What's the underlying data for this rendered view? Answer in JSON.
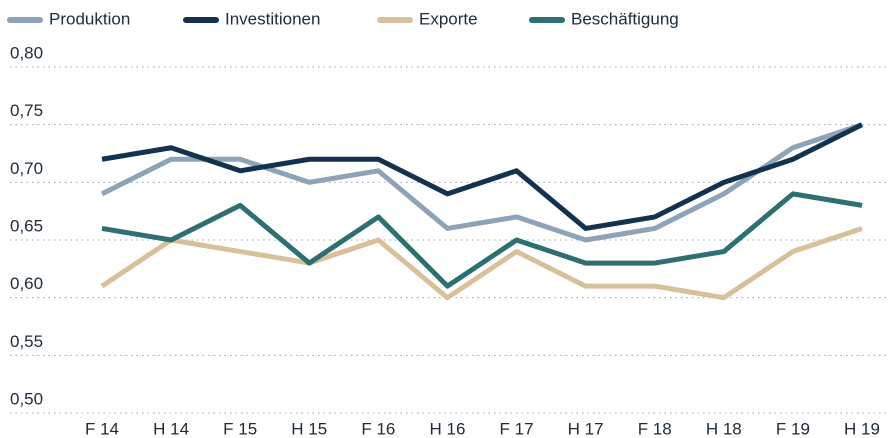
{
  "chart_data": {
    "type": "line",
    "categories": [
      "F 14",
      "H 14",
      "F 15",
      "H 15",
      "F 16",
      "H 16",
      "F 17",
      "H 17",
      "F 18",
      "H 18",
      "F 19",
      "H 19"
    ],
    "series": [
      {
        "name": "Produktion",
        "color": "#8fa3b8",
        "values": [
          0.69,
          0.72,
          0.72,
          0.7,
          0.71,
          0.66,
          0.67,
          0.65,
          0.66,
          0.69,
          0.73,
          0.75
        ]
      },
      {
        "name": "Investitionen",
        "color": "#12324f",
        "values": [
          0.72,
          0.73,
          0.71,
          0.72,
          0.72,
          0.69,
          0.71,
          0.66,
          0.67,
          0.7,
          0.72,
          0.75
        ]
      },
      {
        "name": "Exporte",
        "color": "#d9c09a",
        "values": [
          0.61,
          0.65,
          0.64,
          0.63,
          0.65,
          0.6,
          0.64,
          0.61,
          0.61,
          0.6,
          0.64,
          0.66
        ]
      },
      {
        "name": "Beschäftigung",
        "color": "#2e6f72",
        "values": [
          0.66,
          0.65,
          0.68,
          0.63,
          0.67,
          0.61,
          0.65,
          0.63,
          0.63,
          0.64,
          0.69,
          0.68
        ]
      }
    ],
    "ylim": [
      0.5,
      0.8
    ],
    "yticks": [
      {
        "value": 0.5,
        "label": "0,50"
      },
      {
        "value": 0.55,
        "label": "0,55"
      },
      {
        "value": 0.6,
        "label": "0,60"
      },
      {
        "value": 0.65,
        "label": "0,65"
      },
      {
        "value": 0.7,
        "label": "0,70"
      },
      {
        "value": 0.75,
        "label": "0,75"
      },
      {
        "value": 0.8,
        "label": "0,80"
      }
    ],
    "grid": true,
    "legend": "top"
  }
}
